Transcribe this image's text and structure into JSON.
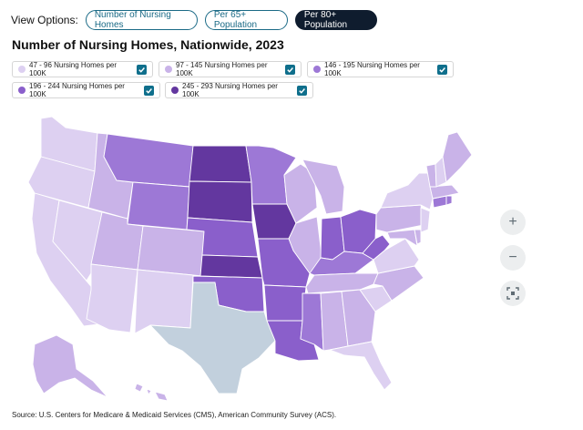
{
  "view_options": {
    "label": "View Options:",
    "buttons": [
      {
        "label": "Number of Nursing Homes",
        "active": false
      },
      {
        "label": "Per 65+ Population",
        "active": false
      },
      {
        "label": "Per 80+ Population",
        "active": true
      }
    ]
  },
  "title": "Number of Nursing Homes, Nationwide, 2023",
  "legend": [
    {
      "label": "47 - 96 Nursing Homes per 100K",
      "color": "#ddd0f1",
      "checked": true
    },
    {
      "label": "97 - 145 Nursing Homes per 100K",
      "color": "#c9b3e8",
      "checked": true
    },
    {
      "label": "146 - 195 Nursing Homes per 100K",
      "color": "#9d78d6",
      "checked": true
    },
    {
      "label": "196 - 244 Nursing Homes per 100K",
      "color": "#8a5fcb",
      "checked": true
    },
    {
      "label": "245 - 293 Nursing Homes per 100K",
      "color": "#63379f",
      "checked": true
    }
  ],
  "no_data_color": "#c2d0dd",
  "map_controls": {
    "zoom_in": "+",
    "zoom_out": "−",
    "fit_icon": "fit-to-screen-icon"
  },
  "source": "Source: U.S. Centers for Medicare & Medicaid Services (CMS), American Community Survey (ACS)."
}
